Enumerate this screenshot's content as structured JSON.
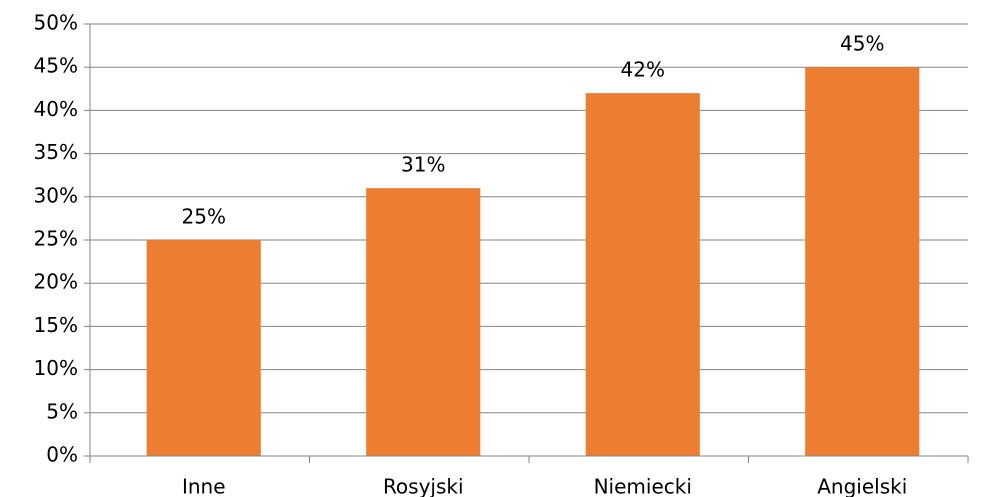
{
  "chart_data": {
    "type": "bar",
    "categories": [
      "Inne",
      "Rosyjski",
      "Niemiecki",
      "Angielski"
    ],
    "values": [
      25,
      31,
      42,
      45
    ],
    "value_labels": [
      "25%",
      "31%",
      "42%",
      "45%"
    ],
    "color": "#ed7d31",
    "ylim": [
      0,
      50
    ],
    "yticks": [
      {
        "value": 0,
        "label": "0%"
      },
      {
        "value": 5,
        "label": "5%"
      },
      {
        "value": 10,
        "label": "10%"
      },
      {
        "value": 15,
        "label": "15%"
      },
      {
        "value": 20,
        "label": "20%"
      },
      {
        "value": 25,
        "label": "25%"
      },
      {
        "value": 30,
        "label": "30%"
      },
      {
        "value": 35,
        "label": "35%"
      },
      {
        "value": 40,
        "label": "40%"
      },
      {
        "value": 45,
        "label": "45%"
      },
      {
        "value": 50,
        "label": "50%"
      }
    ],
    "grid": true
  }
}
